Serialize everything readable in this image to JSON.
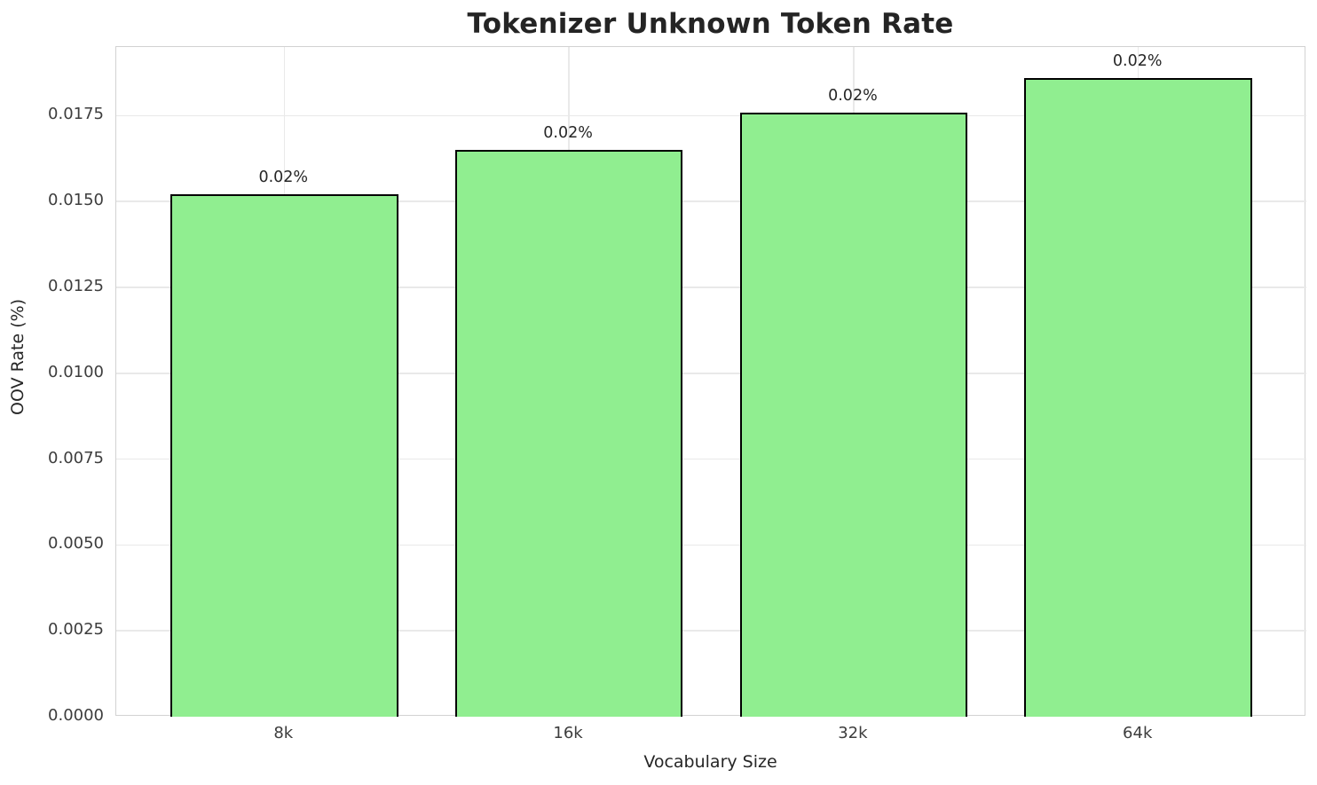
{
  "chart_data": {
    "type": "bar",
    "title": "Tokenizer Unknown Token Rate",
    "xlabel": "Vocabulary Size",
    "ylabel": "OOV Rate (%)",
    "categories": [
      "8k",
      "16k",
      "32k",
      "64k"
    ],
    "values": [
      0.0152,
      0.0165,
      0.0176,
      0.0186
    ],
    "bar_labels": [
      "0.02%",
      "0.02%",
      "0.02%",
      "0.02%"
    ],
    "ytick_values": [
      0.0,
      0.0025,
      0.005,
      0.0075,
      0.01,
      0.0125,
      0.015,
      0.0175
    ],
    "ytick_labels": [
      "0.0000",
      "0.0025",
      "0.0050",
      "0.0075",
      "0.0100",
      "0.0125",
      "0.0150",
      "0.0175"
    ],
    "ylim": [
      0,
      0.0195
    ],
    "grid": "both",
    "legend_position": "none",
    "colors": {
      "bar_fill": "#90EE90",
      "bar_edge": "#000000",
      "grid": "#e9e9e9",
      "spine": "#d2d2d2",
      "title_text": "#242424",
      "axis_label_text": "#262626",
      "tick_text": "#3d3d3d",
      "bar_label_text": "#262626",
      "background": "#ffffff"
    }
  }
}
